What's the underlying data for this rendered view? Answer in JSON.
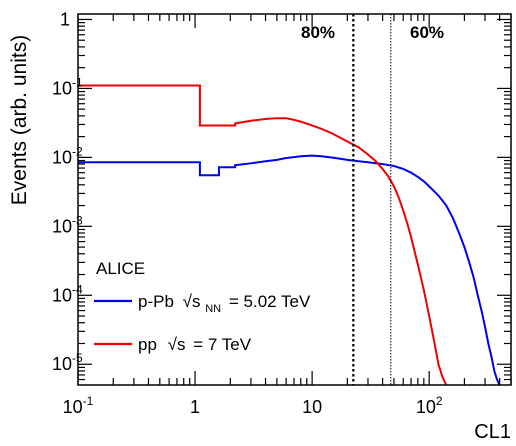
{
  "chart_data": {
    "type": "line",
    "title": "",
    "xlabel": "CL1",
    "ylabel": "Events (arb. units)",
    "xscale": "log",
    "yscale": "log",
    "xlim": [
      0.1,
      500
    ],
    "ylim": [
      5e-06,
      1.2
    ],
    "grid": false,
    "x_ticks": [
      {
        "value": 0.1,
        "base": "10",
        "exp": "-1"
      },
      {
        "value": 1,
        "base": "1",
        "exp": ""
      },
      {
        "value": 10,
        "base": "10",
        "exp": ""
      },
      {
        "value": 100,
        "base": "10",
        "exp": "2"
      }
    ],
    "y_ticks": [
      {
        "value": 1,
        "base": "1",
        "exp": ""
      },
      {
        "value": 0.1,
        "base": "10",
        "exp": "-1"
      },
      {
        "value": 0.01,
        "base": "10",
        "exp": "-2"
      },
      {
        "value": 0.001,
        "base": "10",
        "exp": "-3"
      },
      {
        "value": 0.0001,
        "base": "10",
        "exp": "-4"
      },
      {
        "value": 1e-05,
        "base": "10",
        "exp": "-5"
      }
    ],
    "centrality_lines": [
      {
        "x": 22.5,
        "label": "80%",
        "style": "dotted"
      },
      {
        "x": 47,
        "label": "60%",
        "style": "dotted-thin"
      }
    ],
    "annotation": "ALICE",
    "legend": {
      "placement": "bottom-left",
      "entries": [
        {
          "color": "#0000ee",
          "text": "p-Pb",
          "formula": "√s",
          "sub": "NN",
          "tail": "= 5.02 TeV"
        },
        {
          "color": "#ee0000",
          "text": "pp",
          "formula": "√s",
          "sub": "",
          "tail": "= 7 TeV"
        }
      ]
    },
    "series": [
      {
        "name": "p-Pb √sNN = 5.02 TeV",
        "color": "#0000ee",
        "points": [
          [
            0.1,
            0.0085
          ],
          [
            1.1,
            0.0085
          ],
          [
            1.1,
            0.0055
          ],
          [
            1.6,
            0.0055
          ],
          [
            1.6,
            0.0072
          ],
          [
            2.2,
            0.0072
          ],
          [
            2.2,
            0.0077
          ],
          [
            3,
            0.0082
          ],
          [
            4,
            0.0088
          ],
          [
            5,
            0.0092
          ],
          [
            6,
            0.0098
          ],
          [
            7,
            0.0101
          ],
          [
            8,
            0.0104
          ],
          [
            9,
            0.0105
          ],
          [
            10,
            0.0106
          ],
          [
            12,
            0.0104
          ],
          [
            15,
            0.0099
          ],
          [
            20,
            0.0092
          ],
          [
            25,
            0.0088
          ],
          [
            30,
            0.0085
          ],
          [
            40,
            0.008
          ],
          [
            50,
            0.0075
          ],
          [
            60,
            0.0068
          ],
          [
            70,
            0.006
          ],
          [
            80,
            0.0052
          ],
          [
            90,
            0.0045
          ],
          [
            100,
            0.0038
          ],
          [
            120,
            0.0028
          ],
          [
            140,
            0.002
          ],
          [
            160,
            0.0013
          ],
          [
            180,
            0.0008
          ],
          [
            200,
            0.0005
          ],
          [
            220,
            0.0003
          ],
          [
            240,
            0.00018
          ],
          [
            260,
            0.0001
          ],
          [
            280,
            6e-05
          ],
          [
            300,
            3.5e-05
          ],
          [
            320,
            2e-05
          ],
          [
            340,
            1.3e-05
          ],
          [
            360,
            8e-06
          ],
          [
            380,
            6e-06
          ],
          [
            400,
            5e-06
          ]
        ]
      },
      {
        "name": "pp √s = 7 TeV",
        "color": "#ee0000",
        "points": [
          [
            0.1,
            0.11
          ],
          [
            1.1,
            0.11
          ],
          [
            1.1,
            0.029
          ],
          [
            2.2,
            0.029
          ],
          [
            2.2,
            0.031
          ],
          [
            3,
            0.034
          ],
          [
            4,
            0.036
          ],
          [
            5,
            0.037
          ],
          [
            6,
            0.037
          ],
          [
            7,
            0.035
          ],
          [
            8,
            0.033
          ],
          [
            10,
            0.029
          ],
          [
            12,
            0.026
          ],
          [
            15,
            0.022
          ],
          [
            20,
            0.017
          ],
          [
            25,
            0.014
          ],
          [
            30,
            0.011
          ],
          [
            35,
            0.0088
          ],
          [
            40,
            0.0068
          ],
          [
            45,
            0.0052
          ],
          [
            50,
            0.0038
          ],
          [
            55,
            0.0026
          ],
          [
            60,
            0.0017
          ],
          [
            65,
            0.0011
          ],
          [
            70,
            0.0007
          ],
          [
            80,
            0.00028
          ],
          [
            90,
            0.00012
          ],
          [
            100,
            5e-05
          ],
          [
            110,
            2.2e-05
          ],
          [
            120,
            1e-05
          ],
          [
            130,
            6.5e-06
          ],
          [
            140,
            5e-06
          ]
        ]
      }
    ]
  }
}
